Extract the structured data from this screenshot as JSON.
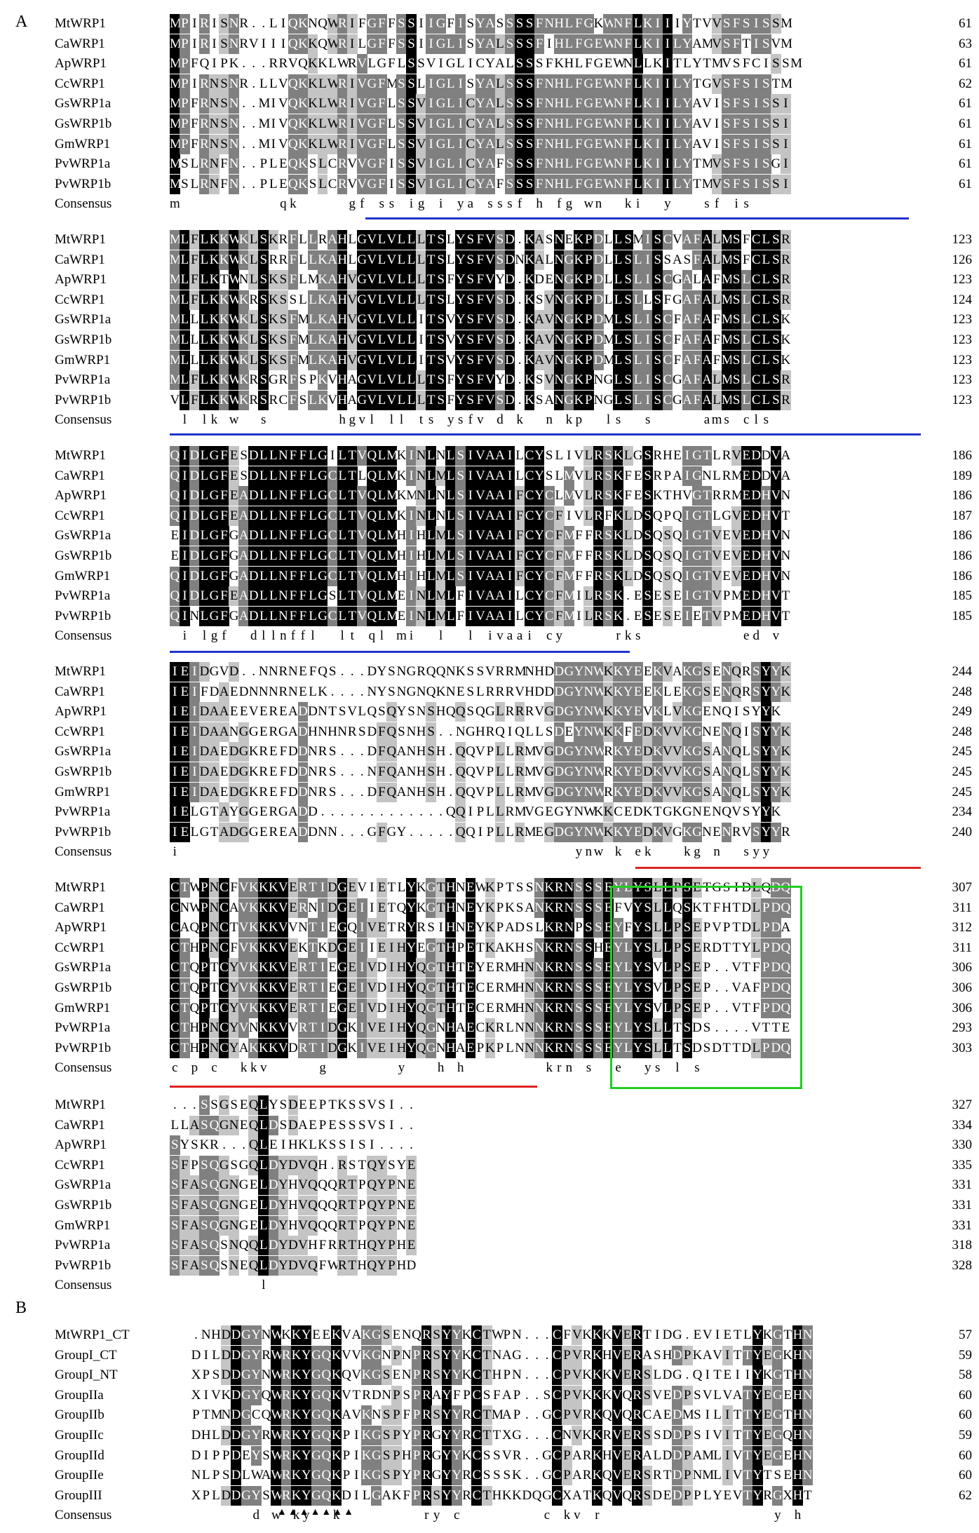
{
  "panels": [
    "A",
    "B"
  ],
  "consensus_label": "Consensus",
  "colors": {
    "black": "#000000",
    "dark_gray": "#808080",
    "light_gray": "#c4c4c4",
    "blue_underline": "#2233cc",
    "red_underline": "#dd2222",
    "green_box": "#22cc22"
  },
  "blocks": [
    {
      "rows": [
        {
          "name": "MtWRP1",
          "seq": "MPIRISNR..LIQKNQWRIFGFFSSIIGFISYASSSSFNHLFGKWNFLKIIIYTVVSFSISSM",
          "end": "61"
        },
        {
          "name": "CaWRP1",
          "seq": "MPIRISNRVIIIQKKQWRILGFFSSIIGLISYALSSSFIHLFGEWNFLKIILYAMVSFTISVM",
          "end": "63"
        },
        {
          "name": "ApWRP1",
          "seq": "MPFQIPK...RRVQKKLWRVLGFLSSVIGLICYALSSSFKHLFGEWNLLKITLYTMVSFCISSM",
          "end": "61"
        },
        {
          "name": "CcWRP1",
          "seq": "MPIRNSNR.LLVQKKLWRIVGFMSSLIGLISYALSSSFNHLFGEWNFLKIILYTGVSFSISTM",
          "end": "62"
        },
        {
          "name": "GsWRP1a",
          "seq": "MPFRNSN..MIVQKKLWRIVGFLSSVIGLICYALSSSFNHLFGEWNFLKIILYAVISFSISSI",
          "end": "61"
        },
        {
          "name": "GsWRP1b",
          "seq": "MPFRNSN..MIVQKKLWRIVGFLSSVIGLICYALSSSFNHLFGEWNFLKIILYAVISFSISSI",
          "end": "61"
        },
        {
          "name": "GmWRP1",
          "seq": "MPFRNSN..MIVQKKLWRIVGFLSSVIGLICYALSSSFNHLFGEWNFLKIILYAVISFSISSI",
          "end": "61"
        },
        {
          "name": "PvWRP1a",
          "seq": "MSLRNFN..PLEQKSLCRVVGFISSVIGLICYAFSSSFNHLFGEWNFLKIILYTMVSFSISGI",
          "end": "61"
        },
        {
          "name": "PvWRP1b",
          "seq": "MSLRNFN..PLEQKSLCRVVGFISSVIGLICYAFSSSFNHLFGEWNFLKIILYTMVSFSISSI",
          "end": "61"
        }
      ],
      "consensus": "m..........qk.....gf.ss.ig.i.ya.sssf.h.fg.wn..ki..y...sf.is..."
    },
    {
      "rows": [
        {
          "name": "MtWRP1",
          "seq": "MLFLKKWKLSKRFLLRAHLGVLVLLLTSLYSFVSD.KASNEKPDLLSMISCVAFALMSFCLSR",
          "end": "123"
        },
        {
          "name": "CaWRP1",
          "seq": "MLFLKKWKLSRRFLLKAHLGVLVLLLTSLYSFVSDNKALNGKPDLLSLISSASFALMSFCLSR",
          "end": "126"
        },
        {
          "name": "ApWRP1",
          "seq": "MLFLKTWNLSKSFLMKAHVGVLVLLLTSFYSFVYD.KDENGKPDLLSLISCGALAFMSLCLSR",
          "end": "123"
        },
        {
          "name": "CcWRP1",
          "seq": "MLFLKKWKRSKSSLLKAHVGVLVLLLTSLYSFVSD.KSVNGKPDLLSLLSFGAFALMSLCLSR",
          "end": "124"
        },
        {
          "name": "GsWRP1a",
          "seq": "MLLLKKWKLSKSFMLKAHVGVLVLLITSVYSFVSD.KAVNGKPDMLSLISCFAFAFMSLCLSK",
          "end": "123"
        },
        {
          "name": "GsWRP1b",
          "seq": "MLLLKKWKLSKSFMLKAHVGVLVLLITSVYSFVSD.KAVNGKPDMLSLISCFAFAFMSLCLSK",
          "end": "123"
        },
        {
          "name": "GmWRP1",
          "seq": "MLLLKKWKLSKSFMLKAHVGVLVLLITSVYSFVSD.KAVNGKPDMLSLISCFAFAFMSLCLSK",
          "end": "123"
        },
        {
          "name": "PvWRP1a",
          "seq": "MLFLKKWKRSGRFSPKVHAGVLVLLLTSFYSFVYD.KSVNGKPNGLSLISCGAFALMSLCLSR",
          "end": "123"
        },
        {
          "name": "PvWRP1b",
          "seq": "VLFLKKWKRSRCFSLKVHAGVLVLLLTSFYSFVSD.KSANGKPNGLSLISCGAFALMSLCLSR",
          "end": "123"
        }
      ],
      "consensus": ".l.lk.w..s.......hgvl.ll.ts.ysfv.d.k..n.kp..ls..s.....ams.cls."
    },
    {
      "rows": [
        {
          "name": "MtWRP1",
          "seq": "QIDLGFESDLLNFFLGILTVQLMKINLNLSIVAAILCYSLIVLRSKLGSRHEIGTLRVEDDVA",
          "end": "186"
        },
        {
          "name": "CaWRP1",
          "seq": "QIDLGFESDLLNFFLGCLTLQLMKINLMLSIVAAILCYSLMVLRSKFESRPAIGNLRMEDDVA",
          "end": "189"
        },
        {
          "name": "ApWRP1",
          "seq": "QIDLGFEADLLNFFLGCLTVQLMKMNLNLSIVAAIFCYCLMVLRSKFESKTHVGTRRMEDHVN",
          "end": "186"
        },
        {
          "name": "CcWRP1",
          "seq": "QIDLGFEADLLNFFLGCLTVQLMKINLNLSIVAAIFCYCFIVLRFKLDSQPQIGTLGVEDHVT",
          "end": "187"
        },
        {
          "name": "GsWRP1a",
          "seq": "EIDLGFGADLLNFFLGCLTVQLMHIHLMLSIVAAIFCYCFMFFRSKLDSQSQIGTVEVEDHVN",
          "end": "186"
        },
        {
          "name": "GsWRP1b",
          "seq": "EIDLGFGADLLNFFLGCLTVQLMHIHLMLSIVAAIFCYCFMFFRSKLDSQSQIGTVEVEDHVN",
          "end": "186"
        },
        {
          "name": "GmWRP1",
          "seq": "QIDLGFGADLLNFFLGCLTVQLMHIHLMLSIVAAIFCYCFMFFRSKLDSQSQIGTVEVEDHVN",
          "end": "186"
        },
        {
          "name": "PvWRP1a",
          "seq": "QIDLGFEADLLNFFLGSLTVQLMEINLMLFIVAAILCYCFMILRSK.ESESEIGTVPMEDHVT",
          "end": "185"
        },
        {
          "name": "PvWRP1b",
          "seq": "QINLGFGADLLNFFLGCLTVQLMEINLMLFIVAAILCYCFMILRSK.ESESEIETVPMEDHVT",
          "end": "185"
        }
      ],
      "consensus": ".i.lgf..dllnffl..lt.ql.mi..l..l.ivaai.cy.....rks..........ed.v."
    },
    {
      "rows": [
        {
          "name": "MtWRP1",
          "seq": "IEIDGVD..NNRNEFQS...DYSNGRQQNKSSVRRMNHDDGYNWKKYEEKVAKGSENQRSYYK",
          "end": "244"
        },
        {
          "name": "CaWRP1",
          "seq": "IEIFDAEDNNNRNELK....NYSNGNQKNESLRRRVHDDDGYNWKKYEEKLEKGSENQRSYYK",
          "end": "248"
        },
        {
          "name": "ApWRP1",
          "seq": "IEIDAAEEVEREADDNTSVLQSQYSNSHQQSQGLRRRVGDGYNWKKYEVKLVKGENQISYYK",
          "end": "249"
        },
        {
          "name": "CcWRP1",
          "seq": "IEIDAANGGERGADHNHNRSDFQSNHS..NGHRQIQLLSDEYNWKKFEDKVVKGNENQISYYK",
          "end": "248"
        },
        {
          "name": "GsWRP1a",
          "seq": "IEIDAEDGKREFDDNRS...DFQANHSH.QQVPLLRMVGDGYNWRKYEDKVVKGSANQLSYYK",
          "end": "245"
        },
        {
          "name": "GsWRP1b",
          "seq": "IEIDAEDGKREFDDNRS...NFQANHSH.QQVPLLRMVGDGYNWRKYEDKVVKGSANQLSYYK",
          "end": "245"
        },
        {
          "name": "GmWRP1",
          "seq": "IEIDAEDGKREFDDNRS...DFQANHSH.QQVPLLRMVGDGYNWRKYEDKVVKGSANQLSYYK",
          "end": "245"
        },
        {
          "name": "PvWRP1a",
          "seq": "IELGTAYGGERGADD.............QQIPLLRMVGEGYNWKKCEDKTGKGNENQVSYYK",
          "end": "234"
        },
        {
          "name": "PvWRP1b",
          "seq": "IELGTADGGEREADDNN...GFGY.....QQIPLLRMEGDGYNWKKYEDKVGKGNENRVSYYR",
          "end": "240"
        }
      ],
      "consensus": "i........................................ynw.k.ek...kg.n..syy."
    },
    {
      "rows": [
        {
          "name": "MtWRP1",
          "seq": "CTWPNCFVKKKVERTIDGEVIETLYKGTHNEWKPTSSNKRNSSSEYLYSLLPSETGSIDLQDQ",
          "end": "307"
        },
        {
          "name": "CaWRP1",
          "seq": "CNWPNCAVKKKVERNIDGEIIETQYKGTHNEYKPKSANKRNSSSEFVYSLLQSKTFHTDLPDQ",
          "end": "311"
        },
        {
          "name": "ApWRP1",
          "seq": "CAQPNCTVKKKVVNTIEGQIVETRYRSIHNEYKPADSLKRNPSSEYFYSLLPSEPVPTDLPDA",
          "end": "312"
        },
        {
          "name": "CcWRP1",
          "seq": "CTHPNCFVKKKVEKTKDGEIIEIHYEGTHPETKAKHSNKRNSSHEYLYSLLPSERDTTYLPDQ",
          "end": "311"
        },
        {
          "name": "GsWRP1a",
          "seq": "CTQPTCYVKKKVERTIEGEIVDIHYQGTHTEYERMHNNKRNSSSEYLYSVLPSEP..VTFPDQ",
          "end": "306"
        },
        {
          "name": "GsWRP1b",
          "seq": "CTQPTCYVKKKVERTIEGEIVDIHYQGTHTECERMHNNKRNSSSEYLYSVLPSEP..VAFPDQ",
          "end": "306"
        },
        {
          "name": "GmWRP1",
          "seq": "CTQPTCYVKKKVERTIEGEIVDIHYQGTHTECERMHNNKRNSSSEYLYSVLPSEP..VTFPDQ",
          "end": "306"
        },
        {
          "name": "PvWRP1a",
          "seq": "CTHPNCYVNKKVVRTIDGKIVEIHYQGNHAECKRLNNNKRNSSSEYLYSLLTSDS....VTTE",
          "end": "293"
        },
        {
          "name": "PvWRP1b",
          "seq": "CTHPNCYAKKKVDRTIDGKIVEIHYQGNHAEPKPLNNNKRNSSSEYLYSLLTSDSDTTDLPDQ",
          "end": "303"
        }
      ],
      "consensus": "c.p.c..kkv.....g.......y...h.h........krn.s..e..ys.l.s........."
    },
    {
      "rows": [
        {
          "name": "MtWRP1",
          "seq": "...SSGSEQLYSDEEPTKSSVSI..",
          "end": "327"
        },
        {
          "name": "CaWRP1",
          "seq": "LLASQGNEQLDSDAEPESSSVSI..",
          "end": "334"
        },
        {
          "name": "ApWRP1",
          "seq": "SYSKR...QLEIHKLKSSISI....",
          "end": "330"
        },
        {
          "name": "CcWRP1",
          "seq": "SFPSQGSGQLDYDVQH.RSTQYSYE",
          "end": "335"
        },
        {
          "name": "GsWRP1a",
          "seq": "SFASQGNGELDYHVQQQRTPQYPNE",
          "end": "331"
        },
        {
          "name": "GsWRP1b",
          "seq": "SFASQGNGELDYHVQQQRTPQYPNE",
          "end": "331"
        },
        {
          "name": "GmWRP1",
          "seq": "SFASQGNGELDYHVQQQRTPQYPNE",
          "end": "331"
        },
        {
          "name": "PvWRP1a",
          "seq": "SFASQSNQQLDYDVHFRRTHQYPHE",
          "end": "318"
        },
        {
          "name": "PvWRP1b",
          "seq": "SFASQSNEQLDYDVQFWRTHQYPHD",
          "end": "328"
        }
      ],
      "consensus": ".........l..............."
    },
    {
      "rows": [
        {
          "name": "MtWRP1_CT",
          "seq": ".NHDDGYNWKKYEEKVAKGSENQRSYYKCTWPN...CFVKKKVERTIDG.EVIETLYKGTHN",
          "end": "57"
        },
        {
          "name": "GroupI_CT",
          "seq": "DILDDGYRWRKYGQKVVKGNPNPRSYYKCTNAG...CPVRKHVERASHDPKAVITTYEGKHN",
          "end": "59"
        },
        {
          "name": "GroupI_NT",
          "seq": "XPSDDGYNWRKYGQKQVKGSENPRSYYKCTHPN...CPVKKKVERSLDG.QITEIIYKGTHN",
          "end": "58"
        },
        {
          "name": "GroupIIa",
          "seq": "XIVKDGYQWRKYGQKVTRDNPSPRAYFPCSFAP..SCPVKKKVQRSVEDPSVLVATYEGEHN",
          "end": "60"
        },
        {
          "name": "GroupIIb",
          "seq": "PTMNDGCQWRKYGQKAVKNSPFPRSYYRCTMAP..GCPVRKQVQRCAEDMSILITTYEGTHN",
          "end": "60"
        },
        {
          "name": "GroupIIc",
          "seq": "DHLDDGYRWRKYGQKPIKGSPYPRGYYRCTTXG...CNVKKRVERSSDDPSIVITTYEGQHN",
          "end": "59"
        },
        {
          "name": "GroupIId",
          "seq": "DIPPDEYSWRKYGQKPIKGSPHPRGYYKCSSVR..GCPARKHVERALDDPAMLIVTYEGEHN",
          "end": "60"
        },
        {
          "name": "GroupIIe",
          "seq": "NLPSDLWAWRKYGQKPIKGSPYPRGYYRCSSSK..GCPARKQVERSRTDPNMLIVTYTSEHN",
          "end": "60"
        },
        {
          "name": "GroupIII",
          "seq": "XPLDDGYSWRKYGQKDILGAKFPRSYYRCTHKKDQGCXATKQVQRSDEDPPLYEVTYRGXHT",
          "end": "62"
        }
      ],
      "consensus": "......d.w.ky..k........ry.c........c.kv.r.................y.h"
    }
  ],
  "motif_triangles": "▲▲▲▲▲▲▲"
}
